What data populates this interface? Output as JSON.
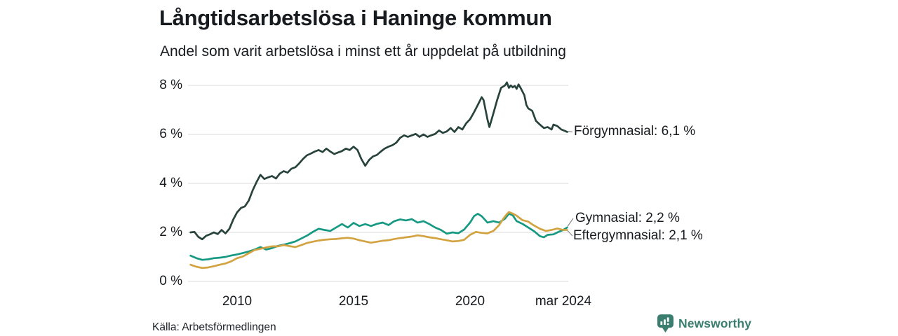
{
  "header": {
    "title": "Långtidsarbetslösa i Haninge kommun",
    "subtitle": "Andel som varit arbetslösa i minst ett år uppdelat på utbildning"
  },
  "footer": {
    "source": "Källa: Arbetsförmedlingen",
    "brand": "Newsworthy",
    "brand_color": "#3b7e70",
    "brand_icon": "newsworthy-pin-barchart-icon"
  },
  "colors": {
    "background": "#ffffff",
    "text": "#171a1e",
    "gridline": "#e1e1e1",
    "connector": "#8a8a8a"
  },
  "chart_data": {
    "type": "line",
    "title": "Långtidsarbetslösa i Haninge kommun",
    "subtitle": "Andel som varit arbetslösa i minst ett år uppdelat på utbildning",
    "xlabel": "",
    "ylabel": "",
    "x_domain": [
      2008.0,
      2024.25
    ],
    "y_domain": [
      0,
      8.5
    ],
    "grid": "horizontal-only",
    "legend_position": "right-end-labels",
    "y_ticks": [
      {
        "label": "8 %",
        "value": 8
      },
      {
        "label": "6 %",
        "value": 6
      },
      {
        "label": "4 %",
        "value": 4
      },
      {
        "label": "2 %",
        "value": 2
      },
      {
        "label": "0 %",
        "value": 0
      }
    ],
    "x_ticks": [
      {
        "label": "2010",
        "x": 2010
      },
      {
        "label": "2015",
        "x": 2015
      },
      {
        "label": "2020",
        "x": 2020
      },
      {
        "label": "mar 2024",
        "x": 2024.17
      }
    ],
    "series": [
      {
        "id": "forgymnasial",
        "name": "Förgymnasial",
        "label": "Förgymnasial: 6,1 %",
        "latest_value": "6,1 %",
        "color": "#28423c",
        "points": [
          [
            2008.0,
            2.0
          ],
          [
            2008.17,
            2.02
          ],
          [
            2008.33,
            1.82
          ],
          [
            2008.5,
            1.72
          ],
          [
            2008.67,
            1.86
          ],
          [
            2008.83,
            1.92
          ],
          [
            2009.0,
            2.0
          ],
          [
            2009.17,
            1.93
          ],
          [
            2009.33,
            2.1
          ],
          [
            2009.5,
            1.96
          ],
          [
            2009.67,
            2.15
          ],
          [
            2009.83,
            2.52
          ],
          [
            2010.0,
            2.82
          ],
          [
            2010.17,
            3.0
          ],
          [
            2010.33,
            3.06
          ],
          [
            2010.5,
            3.3
          ],
          [
            2010.67,
            3.72
          ],
          [
            2010.83,
            4.05
          ],
          [
            2011.0,
            4.35
          ],
          [
            2011.17,
            4.18
          ],
          [
            2011.33,
            4.25
          ],
          [
            2011.5,
            4.3
          ],
          [
            2011.67,
            4.2
          ],
          [
            2011.83,
            4.4
          ],
          [
            2012.0,
            4.5
          ],
          [
            2012.17,
            4.44
          ],
          [
            2012.33,
            4.6
          ],
          [
            2012.5,
            4.66
          ],
          [
            2012.67,
            4.82
          ],
          [
            2012.83,
            5.0
          ],
          [
            2013.0,
            5.15
          ],
          [
            2013.17,
            5.22
          ],
          [
            2013.33,
            5.3
          ],
          [
            2013.5,
            5.36
          ],
          [
            2013.67,
            5.28
          ],
          [
            2013.83,
            5.42
          ],
          [
            2014.0,
            5.3
          ],
          [
            2014.17,
            5.2
          ],
          [
            2014.33,
            5.26
          ],
          [
            2014.5,
            5.32
          ],
          [
            2014.67,
            5.42
          ],
          [
            2014.83,
            5.36
          ],
          [
            2015.0,
            5.5
          ],
          [
            2015.17,
            5.36
          ],
          [
            2015.33,
            5.0
          ],
          [
            2015.5,
            4.72
          ],
          [
            2015.67,
            4.96
          ],
          [
            2015.83,
            5.1
          ],
          [
            2016.0,
            5.16
          ],
          [
            2016.17,
            5.3
          ],
          [
            2016.33,
            5.42
          ],
          [
            2016.5,
            5.5
          ],
          [
            2016.67,
            5.56
          ],
          [
            2016.83,
            5.66
          ],
          [
            2017.0,
            5.86
          ],
          [
            2017.17,
            5.96
          ],
          [
            2017.33,
            5.9
          ],
          [
            2017.5,
            5.96
          ],
          [
            2017.67,
            6.02
          ],
          [
            2017.83,
            5.9
          ],
          [
            2018.0,
            6.0
          ],
          [
            2018.17,
            5.9
          ],
          [
            2018.33,
            5.96
          ],
          [
            2018.5,
            6.02
          ],
          [
            2018.67,
            6.16
          ],
          [
            2018.83,
            6.06
          ],
          [
            2019.0,
            6.12
          ],
          [
            2019.17,
            6.26
          ],
          [
            2019.33,
            6.1
          ],
          [
            2019.5,
            6.3
          ],
          [
            2019.67,
            6.2
          ],
          [
            2019.83,
            6.45
          ],
          [
            2020.0,
            6.62
          ],
          [
            2020.17,
            6.9
          ],
          [
            2020.33,
            7.2
          ],
          [
            2020.5,
            7.52
          ],
          [
            2020.58,
            7.4
          ],
          [
            2020.75,
            6.6
          ],
          [
            2020.83,
            6.3
          ],
          [
            2021.0,
            6.85
          ],
          [
            2021.17,
            7.42
          ],
          [
            2021.33,
            7.9
          ],
          [
            2021.5,
            8.0
          ],
          [
            2021.58,
            8.12
          ],
          [
            2021.67,
            7.9
          ],
          [
            2021.75,
            8.0
          ],
          [
            2021.83,
            7.92
          ],
          [
            2021.92,
            7.98
          ],
          [
            2022.0,
            7.86
          ],
          [
            2022.08,
            8.04
          ],
          [
            2022.17,
            7.9
          ],
          [
            2022.33,
            7.6
          ],
          [
            2022.42,
            7.2
          ],
          [
            2022.5,
            7.06
          ],
          [
            2022.67,
            6.96
          ],
          [
            2022.83,
            6.55
          ],
          [
            2023.0,
            6.4
          ],
          [
            2023.17,
            6.26
          ],
          [
            2023.33,
            6.3
          ],
          [
            2023.5,
            6.2
          ],
          [
            2023.58,
            6.4
          ],
          [
            2023.75,
            6.34
          ],
          [
            2023.92,
            6.2
          ],
          [
            2024.08,
            6.14
          ],
          [
            2024.17,
            6.1
          ]
        ]
      },
      {
        "id": "gymnasial",
        "name": "Gymnasial",
        "label": "Gymnasial: 2,2 %",
        "latest_value": "2,2 %",
        "color": "#169982",
        "points": [
          [
            2008.0,
            1.05
          ],
          [
            2008.25,
            0.95
          ],
          [
            2008.5,
            0.88
          ],
          [
            2008.75,
            0.9
          ],
          [
            2009.0,
            0.95
          ],
          [
            2009.25,
            0.97
          ],
          [
            2009.5,
            1.0
          ],
          [
            2009.75,
            1.06
          ],
          [
            2010.0,
            1.1
          ],
          [
            2010.25,
            1.16
          ],
          [
            2010.5,
            1.22
          ],
          [
            2010.75,
            1.3
          ],
          [
            2011.0,
            1.4
          ],
          [
            2011.25,
            1.3
          ],
          [
            2011.5,
            1.36
          ],
          [
            2011.75,
            1.45
          ],
          [
            2012.0,
            1.5
          ],
          [
            2012.25,
            1.56
          ],
          [
            2012.5,
            1.63
          ],
          [
            2012.75,
            1.75
          ],
          [
            2013.0,
            1.87
          ],
          [
            2013.25,
            2.02
          ],
          [
            2013.5,
            2.15
          ],
          [
            2013.75,
            2.1
          ],
          [
            2014.0,
            2.06
          ],
          [
            2014.25,
            2.2
          ],
          [
            2014.5,
            2.34
          ],
          [
            2014.75,
            2.2
          ],
          [
            2015.0,
            2.39
          ],
          [
            2015.25,
            2.26
          ],
          [
            2015.5,
            2.34
          ],
          [
            2015.75,
            2.26
          ],
          [
            2016.0,
            2.35
          ],
          [
            2016.25,
            2.4
          ],
          [
            2016.5,
            2.3
          ],
          [
            2016.75,
            2.46
          ],
          [
            2017.0,
            2.53
          ],
          [
            2017.25,
            2.49
          ],
          [
            2017.5,
            2.54
          ],
          [
            2017.75,
            2.4
          ],
          [
            2018.0,
            2.46
          ],
          [
            2018.25,
            2.34
          ],
          [
            2018.5,
            2.2
          ],
          [
            2018.75,
            2.1
          ],
          [
            2019.0,
            1.95
          ],
          [
            2019.25,
            2.0
          ],
          [
            2019.5,
            1.97
          ],
          [
            2019.75,
            2.12
          ],
          [
            2020.0,
            2.4
          ],
          [
            2020.17,
            2.66
          ],
          [
            2020.33,
            2.76
          ],
          [
            2020.5,
            2.66
          ],
          [
            2020.75,
            2.4
          ],
          [
            2021.0,
            2.46
          ],
          [
            2021.25,
            2.4
          ],
          [
            2021.5,
            2.56
          ],
          [
            2021.67,
            2.76
          ],
          [
            2021.83,
            2.7
          ],
          [
            2022.0,
            2.46
          ],
          [
            2022.25,
            2.35
          ],
          [
            2022.5,
            2.2
          ],
          [
            2022.75,
            2.05
          ],
          [
            2023.0,
            1.85
          ],
          [
            2023.17,
            1.8
          ],
          [
            2023.33,
            1.9
          ],
          [
            2023.58,
            1.92
          ],
          [
            2023.75,
            2.0
          ],
          [
            2024.0,
            2.1
          ],
          [
            2024.17,
            2.2
          ]
        ]
      },
      {
        "id": "eftergymnasial",
        "name": "Eftergymnasial",
        "label": "Eftergymnasial: 2,1 %",
        "latest_value": "2,1 %",
        "color": "#d2a340",
        "points": [
          [
            2008.0,
            0.68
          ],
          [
            2008.25,
            0.6
          ],
          [
            2008.5,
            0.55
          ],
          [
            2008.75,
            0.57
          ],
          [
            2009.0,
            0.62
          ],
          [
            2009.25,
            0.68
          ],
          [
            2009.5,
            0.73
          ],
          [
            2009.75,
            0.82
          ],
          [
            2010.0,
            0.95
          ],
          [
            2010.25,
            1.02
          ],
          [
            2010.5,
            1.15
          ],
          [
            2010.75,
            1.28
          ],
          [
            2011.0,
            1.33
          ],
          [
            2011.25,
            1.39
          ],
          [
            2011.5,
            1.43
          ],
          [
            2011.75,
            1.43
          ],
          [
            2012.0,
            1.48
          ],
          [
            2012.25,
            1.44
          ],
          [
            2012.5,
            1.4
          ],
          [
            2012.75,
            1.48
          ],
          [
            2013.0,
            1.57
          ],
          [
            2013.25,
            1.62
          ],
          [
            2013.5,
            1.67
          ],
          [
            2013.75,
            1.7
          ],
          [
            2014.0,
            1.72
          ],
          [
            2014.25,
            1.73
          ],
          [
            2014.5,
            1.76
          ],
          [
            2014.75,
            1.78
          ],
          [
            2015.0,
            1.75
          ],
          [
            2015.25,
            1.68
          ],
          [
            2015.5,
            1.63
          ],
          [
            2015.75,
            1.58
          ],
          [
            2016.0,
            1.62
          ],
          [
            2016.25,
            1.66
          ],
          [
            2016.5,
            1.68
          ],
          [
            2016.75,
            1.73
          ],
          [
            2017.0,
            1.77
          ],
          [
            2017.25,
            1.8
          ],
          [
            2017.5,
            1.83
          ],
          [
            2017.75,
            1.88
          ],
          [
            2018.0,
            1.85
          ],
          [
            2018.25,
            1.8
          ],
          [
            2018.5,
            1.77
          ],
          [
            2018.75,
            1.72
          ],
          [
            2019.0,
            1.68
          ],
          [
            2019.25,
            1.63
          ],
          [
            2019.5,
            1.65
          ],
          [
            2019.75,
            1.7
          ],
          [
            2020.0,
            1.9
          ],
          [
            2020.25,
            2.02
          ],
          [
            2020.5,
            1.98
          ],
          [
            2020.75,
            1.96
          ],
          [
            2021.0,
            2.06
          ],
          [
            2021.25,
            2.3
          ],
          [
            2021.42,
            2.55
          ],
          [
            2021.58,
            2.75
          ],
          [
            2021.67,
            2.83
          ],
          [
            2021.83,
            2.77
          ],
          [
            2022.0,
            2.68
          ],
          [
            2022.25,
            2.5
          ],
          [
            2022.5,
            2.44
          ],
          [
            2022.75,
            2.28
          ],
          [
            2023.0,
            2.15
          ],
          [
            2023.25,
            2.06
          ],
          [
            2023.5,
            2.1
          ],
          [
            2023.75,
            2.16
          ],
          [
            2024.0,
            2.1
          ],
          [
            2024.17,
            2.1
          ]
        ]
      }
    ]
  }
}
